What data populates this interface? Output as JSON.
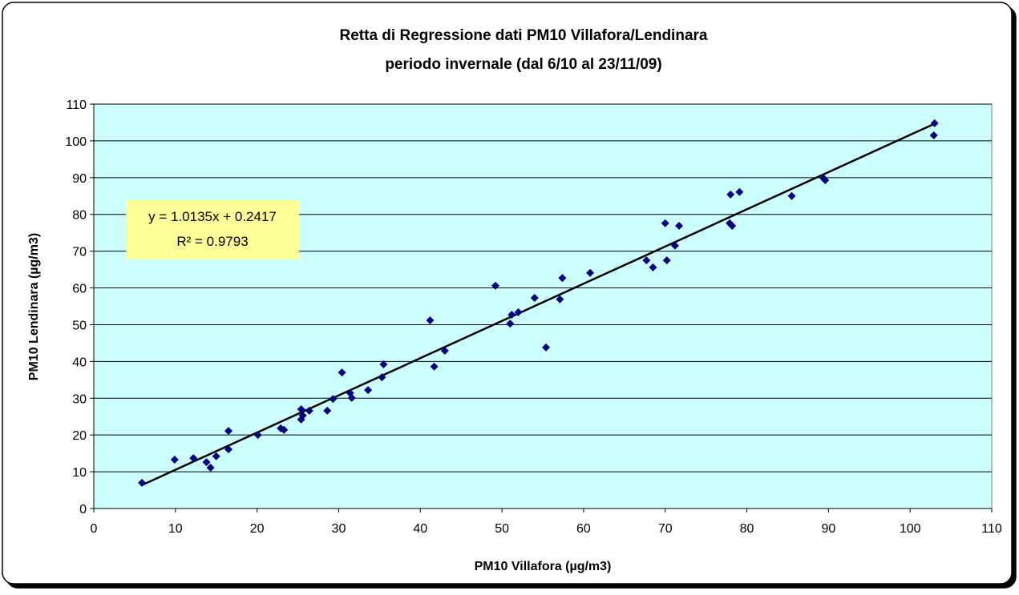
{
  "chart_data": {
    "type": "scatter",
    "title": "Retta di Regressione dati PM10  Villafora/Lendinara",
    "subtitle": "periodo invernale (dal 6/10 al 23/11/09)",
    "x_label": "PM10 Villafora (µg/m3)",
    "y_label": "PM10 Lendinara (µg/m3)",
    "annotations": [
      "y = 1.0135x + 0.2417",
      "R² = 0.9793"
    ],
    "trendline": true,
    "grid": true,
    "background": "#ccffff",
    "series": [
      {
        "name": "PM10",
        "color": "#000080",
        "x": [
          5.9,
          9.9,
          12.2,
          13.8,
          14.3,
          15.0,
          16.5,
          16.5,
          20.1,
          22.9,
          23.3,
          25.4,
          25.4,
          25.6,
          26.4,
          28.6,
          29.3,
          30.4,
          31.4,
          31.6,
          33.6,
          35.3,
          35.5,
          41.2,
          41.7,
          43.0,
          49.2,
          51.0,
          51.2,
          52.0,
          54.0,
          55.4,
          57.1,
          57.4,
          60.8,
          67.7,
          68.5,
          70.0,
          70.2,
          71.2,
          71.7,
          78.0,
          77.9,
          78.2,
          79.1,
          85.5,
          89.4,
          89.6,
          103.0,
          102.9
        ],
        "values": [
          7.0,
          13.3,
          13.7,
          12.6,
          11.1,
          14.2,
          21.1,
          16.1,
          20.0,
          21.8,
          21.4,
          27.0,
          24.2,
          25.3,
          26.6,
          26.6,
          29.8,
          37.0,
          31.4,
          30.1,
          32.2,
          35.7,
          39.2,
          51.2,
          38.6,
          42.9,
          60.6,
          50.3,
          52.7,
          53.4,
          57.3,
          43.8,
          56.9,
          62.7,
          64.1,
          67.5,
          65.6,
          77.6,
          67.5,
          71.5,
          76.9,
          85.4,
          77.6,
          76.9,
          86.1,
          85.0,
          89.8,
          89.3,
          104.8,
          101.5
        ]
      }
    ],
    "xlim": [
      0,
      110
    ],
    "xticks": [
      0,
      10,
      20,
      30,
      40,
      50,
      60,
      70,
      80,
      90,
      100,
      110
    ],
    "ylim": [
      0,
      110
    ],
    "yticks": [
      0,
      10,
      20,
      30,
      40,
      50,
      60,
      70,
      80,
      90,
      100,
      110
    ]
  }
}
